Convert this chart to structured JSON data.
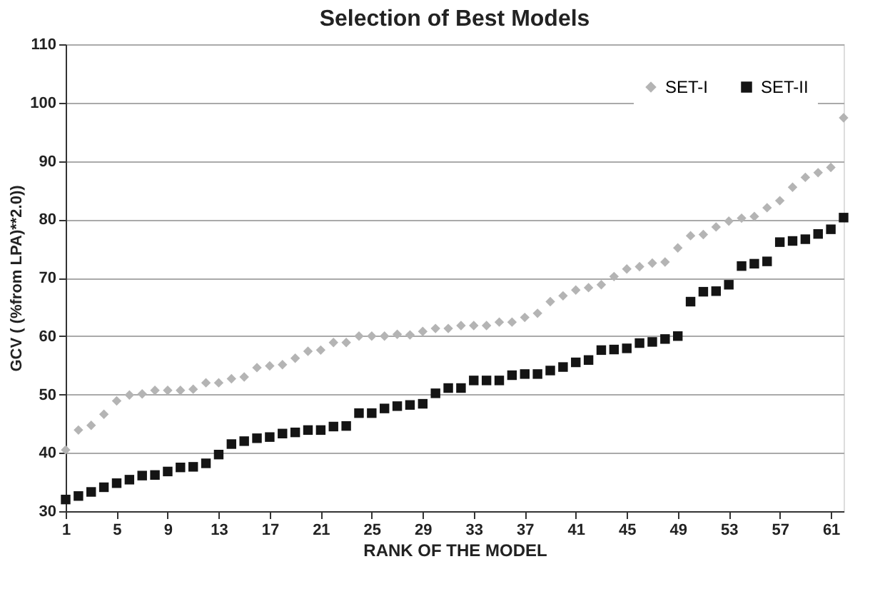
{
  "chart_data": {
    "type": "scatter",
    "title": "Selection of Best Models",
    "xlabel": "RANK OF THE MODEL",
    "ylabel": "GCV ( (%from LPA)**2.0))",
    "x": [
      1,
      2,
      3,
      4,
      5,
      6,
      7,
      8,
      9,
      10,
      11,
      12,
      13,
      14,
      15,
      16,
      17,
      18,
      19,
      20,
      21,
      22,
      23,
      24,
      25,
      26,
      27,
      28,
      29,
      30,
      31,
      32,
      33,
      34,
      35,
      36,
      37,
      38,
      39,
      40,
      41,
      42,
      43,
      44,
      45,
      46,
      47,
      48,
      49,
      50,
      51,
      52,
      53,
      54,
      55,
      56,
      57,
      58,
      59,
      60,
      61,
      62
    ],
    "series": [
      {
        "name": "SET-I",
        "color": "#b4b4b4",
        "marker": "diamond",
        "values": [
          40.5,
          43.9,
          44.7,
          46.6,
          48.9,
          49.9,
          50.1,
          50.7,
          50.7,
          50.7,
          50.9,
          52.0,
          52.0,
          52.7,
          53.0,
          54.6,
          54.9,
          55.1,
          56.2,
          57.4,
          57.6,
          58.9,
          58.9,
          60.0,
          60.0,
          60.0,
          60.3,
          60.2,
          60.8,
          61.3,
          61.3,
          61.8,
          61.8,
          61.8,
          62.4,
          62.4,
          63.2,
          63.9,
          65.9,
          66.9,
          67.9,
          68.3,
          68.8,
          70.2,
          71.5,
          71.9,
          72.5,
          72.7,
          75.1,
          77.2,
          77.4,
          78.7,
          79.7,
          80.2,
          80.5,
          82.0,
          83.2,
          85.5,
          87.2,
          88.0,
          88.9,
          97.4
        ]
      },
      {
        "name": "SET-II",
        "color": "#141414",
        "marker": "square",
        "values": [
          32.0,
          32.6,
          33.3,
          34.1,
          34.8,
          35.4,
          36.1,
          36.2,
          36.8,
          37.5,
          37.6,
          38.2,
          39.7,
          41.5,
          42.0,
          42.5,
          42.7,
          43.3,
          43.5,
          43.9,
          43.9,
          44.5,
          44.6,
          46.8,
          46.8,
          47.6,
          48.0,
          48.2,
          48.4,
          50.2,
          51.1,
          51.1,
          52.4,
          52.4,
          52.4,
          53.3,
          53.5,
          53.5,
          54.1,
          54.7,
          55.5,
          55.9,
          57.6,
          57.7,
          57.9,
          58.8,
          59.0,
          59.5,
          60.0,
          65.9,
          67.6,
          67.7,
          68.8,
          72.0,
          72.4,
          72.8,
          76.1,
          76.3,
          76.6,
          77.5,
          78.3,
          80.3
        ]
      }
    ],
    "xlim": [
      1,
      62
    ],
    "xticks": [
      1,
      5,
      9,
      13,
      17,
      21,
      25,
      29,
      33,
      37,
      41,
      45,
      49,
      53,
      57,
      61
    ],
    "ylim": [
      30,
      110
    ],
    "yticks": [
      30,
      40,
      50,
      60,
      70,
      80,
      90,
      100,
      110
    ],
    "grid": "y",
    "legend": "top right"
  }
}
